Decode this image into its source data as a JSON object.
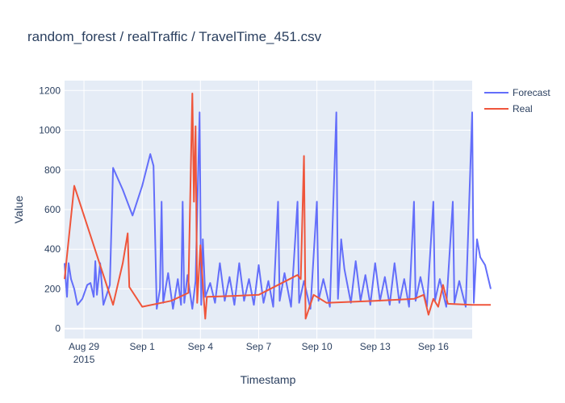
{
  "chart_data": {
    "type": "line",
    "title": "random_forest / realTraffic / TravelTime_451.csv",
    "xlabel": "Timestamp",
    "ylabel": "Value",
    "x_range": [
      "2015-08-28T00:00",
      "2015-09-18T00:00"
    ],
    "ylim": [
      -50,
      1250
    ],
    "grid": true,
    "legend_position": "top-right",
    "x_ticks": [
      {
        "date": "2015-08-29T00:00",
        "label": "Aug 29",
        "sublabel": "2015"
      },
      {
        "date": "2015-09-01T00:00",
        "label": "Sep 1"
      },
      {
        "date": "2015-09-04T00:00",
        "label": "Sep 4"
      },
      {
        "date": "2015-09-07T00:00",
        "label": "Sep 7"
      },
      {
        "date": "2015-09-10T00:00",
        "label": "Sep 10"
      },
      {
        "date": "2015-09-13T00:00",
        "label": "Sep 13"
      },
      {
        "date": "2015-09-16T00:00",
        "label": "Sep 16"
      }
    ],
    "y_ticks": [
      0,
      200,
      400,
      600,
      800,
      1000,
      1200
    ],
    "series": [
      {
        "name": "Forecast",
        "color": "#636efa",
        "points": [
          [
            "2015-08-28T00:00",
            330
          ],
          [
            "2015-08-28T03:00",
            160
          ],
          [
            "2015-08-28T05:00",
            330
          ],
          [
            "2015-08-28T08:00",
            250
          ],
          [
            "2015-08-28T12:00",
            200
          ],
          [
            "2015-08-28T16:00",
            120
          ],
          [
            "2015-08-28T22:00",
            150
          ],
          [
            "2015-08-29T04:00",
            220
          ],
          [
            "2015-08-29T08:00",
            230
          ],
          [
            "2015-08-29T12:00",
            160
          ],
          [
            "2015-08-29T14:00",
            340
          ],
          [
            "2015-08-29T16:00",
            170
          ],
          [
            "2015-08-29T20:00",
            330
          ],
          [
            "2015-08-30T00:00",
            120
          ],
          [
            "2015-08-30T08:00",
            220
          ],
          [
            "2015-08-30T12:00",
            810
          ],
          [
            "2015-08-31T00:00",
            700
          ],
          [
            "2015-08-31T12:00",
            570
          ],
          [
            "2015-09-01T00:00",
            720
          ],
          [
            "2015-09-01T10:00",
            880
          ],
          [
            "2015-09-01T14:00",
            820
          ],
          [
            "2015-09-01T18:00",
            100
          ],
          [
            "2015-09-01T22:00",
            200
          ],
          [
            "2015-09-02T00:00",
            640
          ],
          [
            "2015-09-02T02:00",
            130
          ],
          [
            "2015-09-02T08:00",
            280
          ],
          [
            "2015-09-02T14:00",
            100
          ],
          [
            "2015-09-02T20:00",
            250
          ],
          [
            "2015-09-03T00:00",
            120
          ],
          [
            "2015-09-03T02:00",
            640
          ],
          [
            "2015-09-03T04:00",
            130
          ],
          [
            "2015-09-03T08:00",
            270
          ],
          [
            "2015-09-03T14:00",
            100
          ],
          [
            "2015-09-03T18:00",
            240
          ],
          [
            "2015-09-03T23:00",
            1090
          ],
          [
            "2015-09-04T01:00",
            120
          ],
          [
            "2015-09-04T03:00",
            450
          ],
          [
            "2015-09-04T06:00",
            160
          ],
          [
            "2015-09-04T12:00",
            230
          ],
          [
            "2015-09-04T18:00",
            130
          ],
          [
            "2015-09-05T00:00",
            330
          ],
          [
            "2015-09-05T06:00",
            140
          ],
          [
            "2015-09-05T12:00",
            260
          ],
          [
            "2015-09-05T18:00",
            120
          ],
          [
            "2015-09-06T00:00",
            330
          ],
          [
            "2015-09-06T06:00",
            140
          ],
          [
            "2015-09-06T12:00",
            250
          ],
          [
            "2015-09-06T18:00",
            120
          ],
          [
            "2015-09-07T00:00",
            320
          ],
          [
            "2015-09-07T06:00",
            130
          ],
          [
            "2015-09-07T12:00",
            240
          ],
          [
            "2015-09-07T18:00",
            110
          ],
          [
            "2015-09-08T00:00",
            640
          ],
          [
            "2015-09-08T02:00",
            140
          ],
          [
            "2015-09-08T08:00",
            280
          ],
          [
            "2015-09-08T16:00",
            110
          ],
          [
            "2015-09-09T00:00",
            640
          ],
          [
            "2015-09-09T02:00",
            130
          ],
          [
            "2015-09-09T08:00",
            240
          ],
          [
            "2015-09-09T16:00",
            100
          ],
          [
            "2015-09-10T00:00",
            640
          ],
          [
            "2015-09-10T02:00",
            140
          ],
          [
            "2015-09-10T08:00",
            250
          ],
          [
            "2015-09-10T16:00",
            110
          ],
          [
            "2015-09-11T00:00",
            1090
          ],
          [
            "2015-09-11T02:00",
            150
          ],
          [
            "2015-09-11T06:00",
            450
          ],
          [
            "2015-09-11T10:00",
            300
          ],
          [
            "2015-09-11T18:00",
            130
          ],
          [
            "2015-09-12T00:00",
            340
          ],
          [
            "2015-09-12T06:00",
            140
          ],
          [
            "2015-09-12T12:00",
            270
          ],
          [
            "2015-09-12T18:00",
            120
          ],
          [
            "2015-09-13T00:00",
            330
          ],
          [
            "2015-09-13T06:00",
            140
          ],
          [
            "2015-09-13T12:00",
            260
          ],
          [
            "2015-09-13T18:00",
            120
          ],
          [
            "2015-09-14T00:00",
            330
          ],
          [
            "2015-09-14T06:00",
            130
          ],
          [
            "2015-09-14T12:00",
            250
          ],
          [
            "2015-09-14T18:00",
            110
          ],
          [
            "2015-09-15T00:00",
            640
          ],
          [
            "2015-09-15T02:00",
            140
          ],
          [
            "2015-09-15T08:00",
            260
          ],
          [
            "2015-09-15T16:00",
            110
          ],
          [
            "2015-09-16T00:00",
            640
          ],
          [
            "2015-09-16T02:00",
            140
          ],
          [
            "2015-09-16T08:00",
            250
          ],
          [
            "2015-09-16T16:00",
            110
          ],
          [
            "2015-09-17T00:00",
            640
          ],
          [
            "2015-09-17T02:00",
            130
          ],
          [
            "2015-09-17T08:00",
            240
          ],
          [
            "2015-09-17T16:00",
            110
          ],
          [
            "2015-09-18T00:00",
            1090
          ],
          [
            "2015-09-18T02:00",
            130
          ],
          [
            "2015-09-18T06:00",
            450
          ],
          [
            "2015-09-18T10:00",
            360
          ],
          [
            "2015-09-18T16:00",
            320
          ],
          [
            "2015-09-18T23:00",
            200
          ]
        ]
      },
      {
        "name": "Real",
        "color": "#ef553b",
        "points": [
          [
            "2015-08-28T00:00",
            250
          ],
          [
            "2015-08-28T12:00",
            720
          ],
          [
            "2015-08-30T12:00",
            120
          ],
          [
            "2015-08-31T00:00",
            330
          ],
          [
            "2015-08-31T06:00",
            480
          ],
          [
            "2015-08-31T08:00",
            210
          ],
          [
            "2015-09-01T00:00",
            110
          ],
          [
            "2015-09-02T12:00",
            140
          ],
          [
            "2015-09-03T09:00",
            180
          ],
          [
            "2015-09-03T14:00",
            1185
          ],
          [
            "2015-09-03T16:00",
            640
          ],
          [
            "2015-09-03T18:00",
            1020
          ],
          [
            "2015-09-03T20:00",
            130
          ],
          [
            "2015-09-04T00:00",
            420
          ],
          [
            "2015-09-04T04:00",
            160
          ],
          [
            "2015-09-04T06:00",
            50
          ],
          [
            "2015-09-04T08:00",
            160
          ],
          [
            "2015-09-05T18:00",
            165
          ],
          [
            "2015-09-07T00:00",
            170
          ],
          [
            "2015-09-09T00:00",
            270
          ],
          [
            "2015-09-09T04:00",
            250
          ],
          [
            "2015-09-09T08:00",
            870
          ],
          [
            "2015-09-09T10:00",
            50
          ],
          [
            "2015-09-09T20:00",
            170
          ],
          [
            "2015-09-10T12:00",
            130
          ],
          [
            "2015-09-13T00:00",
            140
          ],
          [
            "2015-09-15T00:00",
            150
          ],
          [
            "2015-09-15T12:00",
            170
          ],
          [
            "2015-09-15T18:00",
            70
          ],
          [
            "2015-09-16T00:00",
            150
          ],
          [
            "2015-09-16T06:00",
            110
          ],
          [
            "2015-09-16T12:00",
            220
          ],
          [
            "2015-09-16T18:00",
            125
          ],
          [
            "2015-09-18T00:00",
            120
          ],
          [
            "2015-09-18T23:00",
            120
          ]
        ]
      }
    ]
  }
}
